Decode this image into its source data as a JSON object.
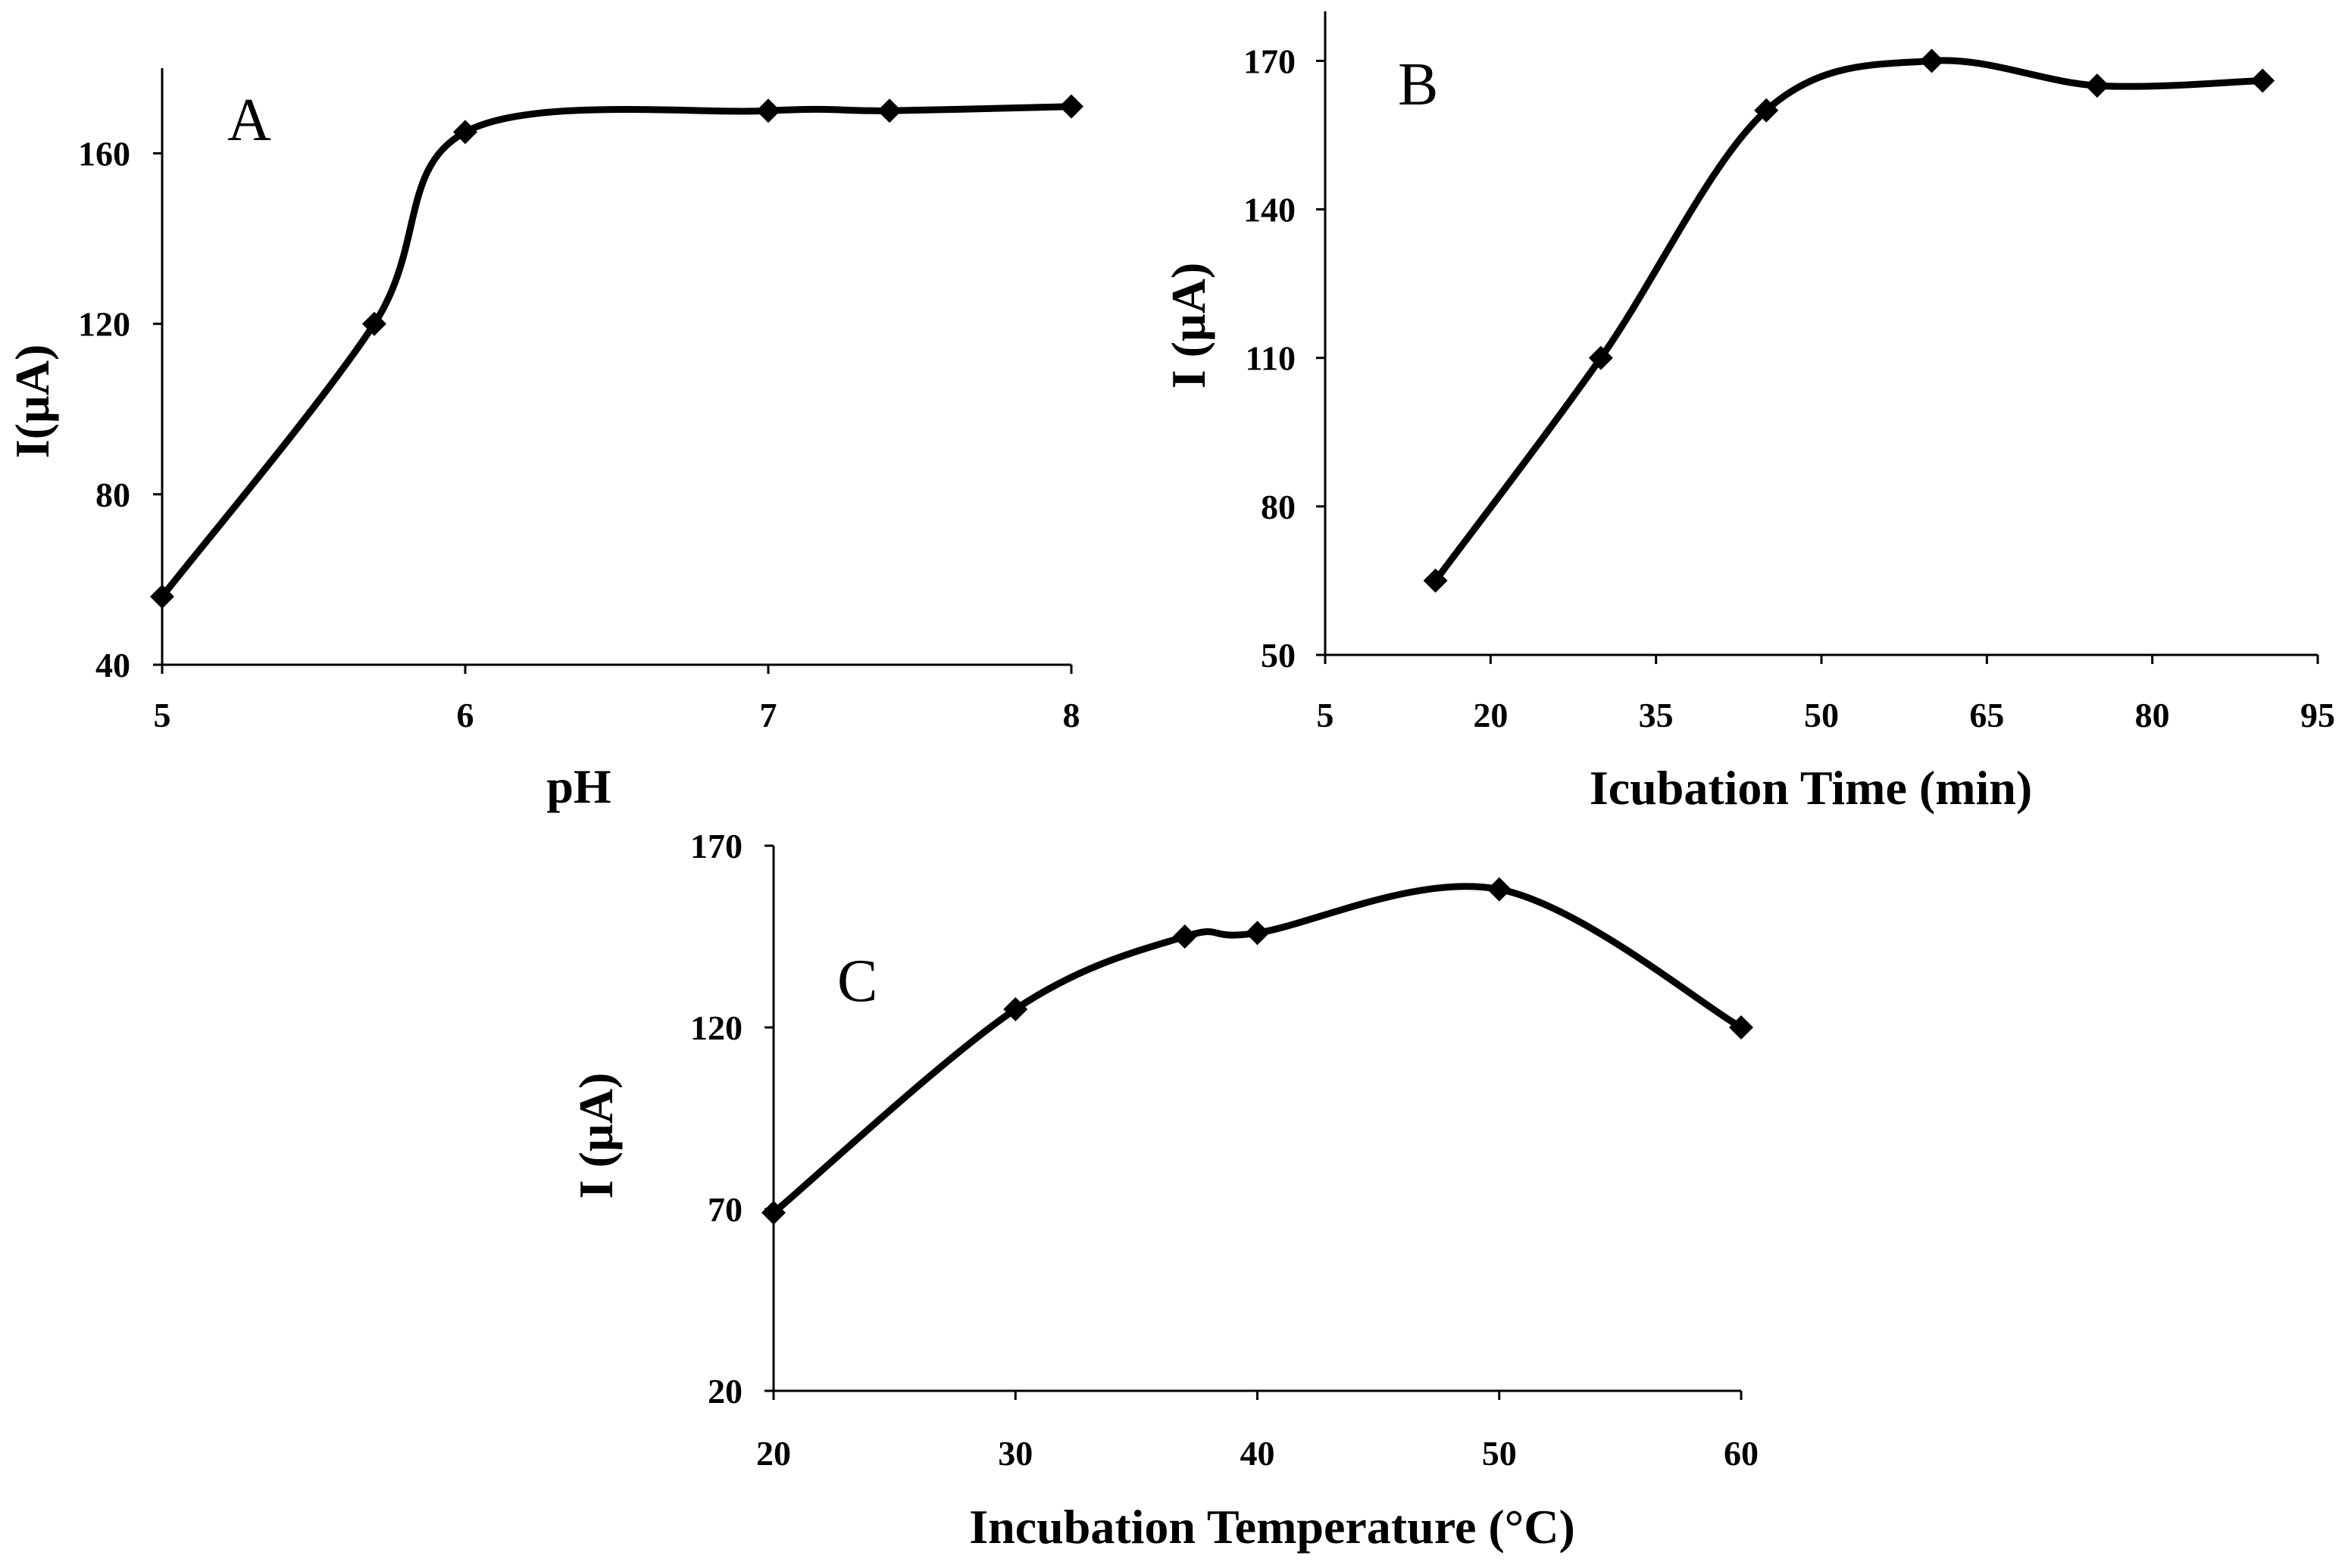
{
  "chart_data": [
    {
      "type": "line",
      "panel_label": "A",
      "title": "",
      "xlabel": "pH",
      "ylabel": "I(µA)",
      "xlim": [
        5,
        8
      ],
      "ylim": [
        40,
        180
      ],
      "xticks": [
        5,
        6,
        7,
        8
      ],
      "yticks": [
        40,
        80,
        120,
        160
      ],
      "x": [
        5,
        5.7,
        6,
        7,
        7.4,
        8
      ],
      "values": [
        56,
        120,
        165,
        170,
        170,
        171
      ],
      "marker": "diamond",
      "smooth": true,
      "grid": false,
      "legend": "none"
    },
    {
      "type": "line",
      "panel_label": "B",
      "title": "",
      "xlabel": "Icubation Time (min)",
      "ylabel": "I (µA)",
      "xlim": [
        5,
        95
      ],
      "ylim": [
        50,
        180
      ],
      "xticks": [
        5,
        20,
        35,
        50,
        65,
        80,
        95
      ],
      "yticks": [
        50,
        80,
        110,
        140,
        170
      ],
      "x": [
        15,
        30,
        45,
        60,
        75,
        90
      ],
      "values": [
        65,
        110,
        160,
        170,
        165,
        166
      ],
      "marker": "diamond",
      "smooth": true,
      "grid": false,
      "legend": "none"
    },
    {
      "type": "line",
      "panel_label": "C",
      "title": "",
      "xlabel": "Incubation Temperature (°C)",
      "ylabel": "I (µA)",
      "xlim": [
        20,
        60
      ],
      "ylim": [
        20,
        170
      ],
      "xticks": [
        20,
        30,
        40,
        50,
        60
      ],
      "yticks": [
        20,
        70,
        120,
        170
      ],
      "x": [
        20,
        30,
        37,
        40,
        50,
        60
      ],
      "values": [
        69,
        125,
        145,
        146,
        158,
        120
      ],
      "marker": "diamond",
      "smooth": true,
      "grid": false,
      "legend": "none"
    }
  ],
  "colors": {
    "line": "#000000",
    "marker": "#000000",
    "background": "#ffffff"
  }
}
